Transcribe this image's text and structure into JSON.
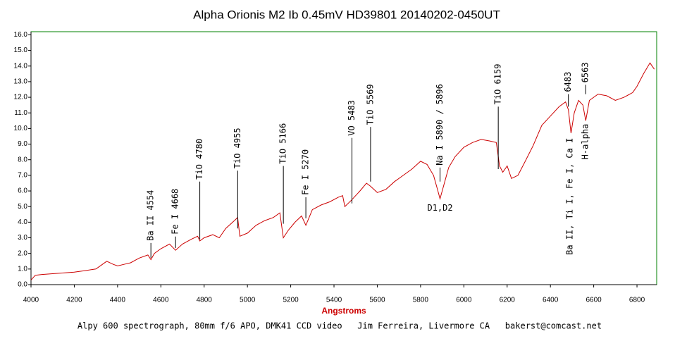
{
  "chart_data": {
    "type": "line",
    "title": "Alpha Orionis  M2 Ib  0.45mV  HD39801  20140202-0450UT",
    "x_label": "Angstroms",
    "footer": "Alpy 600 spectrograph, 80mm f/6 APO, DMK41 CCD video   Jim Ferreira, Livermore CA   bakerst@comcast.net",
    "xlim": [
      4000,
      6891
    ],
    "ylim": [
      0,
      16.2
    ],
    "xticks": [
      4000,
      4200,
      4400,
      4600,
      4800,
      5000,
      5200,
      5400,
      5600,
      5800,
      6000,
      6200,
      6400,
      6600,
      6800
    ],
    "yticks": [
      {
        "value": 0,
        "label": "0.0"
      },
      {
        "value": 1,
        "label": "1.0"
      },
      {
        "value": 2,
        "label": "2.0"
      },
      {
        "value": 3,
        "label": "3.0"
      },
      {
        "value": 4,
        "label": "4.0"
      },
      {
        "value": 5,
        "label": "5.0"
      },
      {
        "value": 6,
        "label": "6.0"
      },
      {
        "value": 7,
        "label": "7.0"
      },
      {
        "value": 8,
        "label": "8.0"
      },
      {
        "value": 9,
        "label": "9.0"
      },
      {
        "value": 10,
        "label": "10.0"
      },
      {
        "value": 11,
        "label": "11.0"
      },
      {
        "value": 12,
        "label": "12.0"
      },
      {
        "value": 13,
        "label": "13.0"
      },
      {
        "value": 14,
        "label": "14.0"
      },
      {
        "value": 15,
        "label": "15.0"
      },
      {
        "value": 16,
        "label": "16.0"
      }
    ],
    "color": "#cc0000",
    "frame_color": "#008000",
    "x": [
      4000,
      4020,
      4050,
      4100,
      4150,
      4200,
      4250,
      4300,
      4330,
      4350,
      4380,
      4400,
      4430,
      4460,
      4500,
      4540,
      4554,
      4570,
      4600,
      4640,
      4668,
      4700,
      4740,
      4770,
      4780,
      4800,
      4840,
      4870,
      4900,
      4940,
      4955,
      4965,
      5000,
      5040,
      5080,
      5120,
      5150,
      5166,
      5190,
      5220,
      5250,
      5270,
      5300,
      5340,
      5380,
      5420,
      5440,
      5450,
      5480,
      5520,
      5550,
      5569,
      5600,
      5640,
      5680,
      5720,
      5760,
      5800,
      5830,
      5860,
      5880,
      5890,
      5900,
      5930,
      5960,
      6000,
      6040,
      6080,
      6120,
      6150,
      6165,
      6180,
      6200,
      6220,
      6250,
      6280,
      6320,
      6360,
      6400,
      6440,
      6470,
      6483,
      6495,
      6510,
      6530,
      6550,
      6563,
      6580,
      6620,
      6660,
      6700,
      6740,
      6780,
      6800,
      6830,
      6860,
      6880
    ],
    "values": [
      0.3,
      0.6,
      0.65,
      0.7,
      0.75,
      0.8,
      0.9,
      1.0,
      1.3,
      1.5,
      1.3,
      1.2,
      1.3,
      1.4,
      1.7,
      1.9,
      1.6,
      2.0,
      2.3,
      2.6,
      2.2,
      2.6,
      2.9,
      3.1,
      2.8,
      3.0,
      3.2,
      3.0,
      3.6,
      4.1,
      4.3,
      3.1,
      3.3,
      3.8,
      4.1,
      4.3,
      4.6,
      3.0,
      3.5,
      4.0,
      4.4,
      3.8,
      4.8,
      5.1,
      5.3,
      5.6,
      5.7,
      5.0,
      5.4,
      6.0,
      6.5,
      6.3,
      5.9,
      6.1,
      6.6,
      7.0,
      7.4,
      7.9,
      7.7,
      7.0,
      6.0,
      5.5,
      6.0,
      7.5,
      8.2,
      8.8,
      9.1,
      9.3,
      9.2,
      9.1,
      7.6,
      7.2,
      7.6,
      6.8,
      7.0,
      7.8,
      8.9,
      10.2,
      10.8,
      11.4,
      11.7,
      11.2,
      9.7,
      11.0,
      11.8,
      11.5,
      10.5,
      11.8,
      12.2,
      12.1,
      11.8,
      12.0,
      12.3,
      12.7,
      13.5,
      14.2,
      13.8
    ],
    "annotations": [
      {
        "text": "Ba II  4554",
        "x": 4554,
        "y": 2.67,
        "y2": 1.72,
        "position": "above"
      },
      {
        "text": "Fe I  4668",
        "x": 4668,
        "y": 3.08,
        "y2": 2.35,
        "position": "above"
      },
      {
        "text": "TiO  4780",
        "x": 4780,
        "y": 6.6,
        "y2": 2.9,
        "position": "above"
      },
      {
        "text": "TiO  4955",
        "x": 4955,
        "y": 7.3,
        "y2": 3.6,
        "position": "above"
      },
      {
        "text": "TiO  5166",
        "x": 5166,
        "y": 7.6,
        "y2": 3.9,
        "position": "above"
      },
      {
        "text": "Fe I  5270",
        "x": 5270,
        "y": 5.6,
        "y2": 4.25,
        "position": "above"
      },
      {
        "text": "VO 5483",
        "x": 5483,
        "y": 9.4,
        "y2": 5.2,
        "position": "above"
      },
      {
        "text": "TiO  5569",
        "x": 5569,
        "y": 10.1,
        "y2": 6.6,
        "position": "above"
      },
      {
        "text": "Na I  5890 / 5896",
        "x": 5890,
        "y": 7.5,
        "y2": 6.6,
        "position": "above"
      },
      {
        "text": "TiO  6159",
        "x": 6159,
        "y": 11.4,
        "y2": 7.4,
        "position": "above"
      },
      {
        "text": "6483",
        "x": 6483,
        "y": 12.2,
        "y2": 11.4,
        "position": "above"
      },
      {
        "text": "6563",
        "x": 6563,
        "y": 12.8,
        "y2": 12.2,
        "position": "above"
      },
      {
        "text": "D1,D2",
        "x": 5890,
        "y": 4.9,
        "position": "horizontal"
      },
      {
        "text": "Ba II, Ti I, Fe I, Ca I",
        "x": 6490,
        "y": 9.4,
        "position": "below"
      },
      {
        "text": "H-alpha",
        "x": 6563,
        "y": 10.3,
        "position": "below"
      }
    ]
  }
}
